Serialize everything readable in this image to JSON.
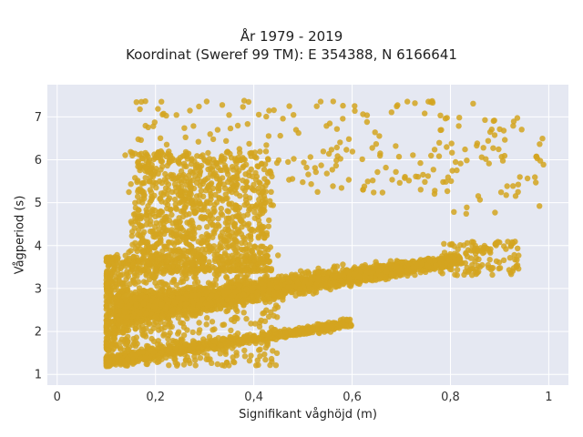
{
  "chart_data": {
    "type": "scatter",
    "title": "År 1979 - 2019",
    "subtitle": "Koordinat (Sweref 99 TM): E 354388, N 6166641",
    "xlabel": "Signifikant våghöjd (m)",
    "ylabel": "Vågperiod (s)",
    "xlim": [
      -0.02,
      1.04
    ],
    "ylim": [
      0.75,
      7.75
    ],
    "xticks": [
      0,
      0.2,
      0.4,
      0.6,
      0.8,
      1
    ],
    "xtick_labels": [
      "0",
      "0,2",
      "0,4",
      "0,6",
      "0,8",
      "1"
    ],
    "yticks": [
      1,
      2,
      3,
      4,
      5,
      6,
      7
    ],
    "ytick_labels": [
      "1",
      "2",
      "3",
      "4",
      "5",
      "6",
      "7"
    ],
    "grid": true,
    "background": "#e5e8f2",
    "marker_color": "#d4a520",
    "point_groups": [
      {
        "description": "dense main band",
        "x_range": [
          0.12,
          0.82
        ],
        "y_at_x": [
          [
            0.12,
            2.4
          ],
          [
            0.82,
            3.7
          ]
        ],
        "spread": 0.6
      },
      {
        "description": "lower sea band",
        "x_range": [
          0.1,
          0.6
        ],
        "y_at_x": [
          [
            0.1,
            1.3
          ],
          [
            0.6,
            2.2
          ]
        ],
        "spread": 0.15
      },
      {
        "description": "swell column",
        "x_range": [
          0.15,
          0.45
        ],
        "y_range": [
          3.5,
          6.2
        ]
      },
      {
        "description": "sparse long-period points",
        "x_range": [
          0.2,
          1.0
        ],
        "y_range": [
          5.0,
          7.4
        ]
      }
    ]
  }
}
